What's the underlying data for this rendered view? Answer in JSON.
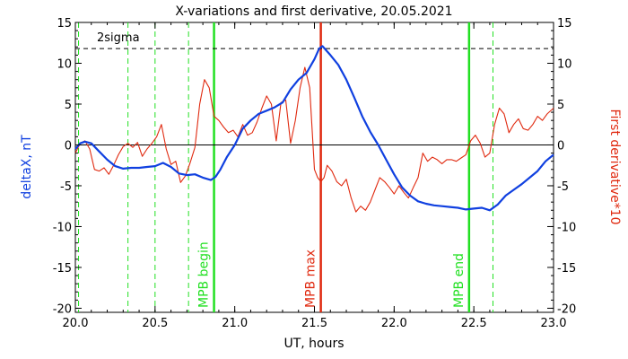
{
  "chart_data": {
    "type": "line",
    "title": "X-variations and first derivative, 20.05.2021",
    "xlabel": "UT, hours",
    "ylabel_left": "deltaX, nT",
    "ylabel_right": "First derivative*10",
    "xlim": [
      20.0,
      23.0
    ],
    "ylim": [
      -20.5,
      15
    ],
    "x_ticks": [
      20.0,
      20.5,
      21.0,
      21.5,
      22.0,
      22.5,
      23.0
    ],
    "x_tick_labels": [
      "20.0",
      "20.5",
      "21.0",
      "21.5",
      "22.0",
      "22.5",
      "23.0"
    ],
    "y_ticks": [
      -20,
      -15,
      -10,
      -5,
      0,
      5,
      10,
      15
    ],
    "y_tick_labels": [
      "-20",
      "-15",
      "-10",
      "-5",
      "0",
      "5",
      "10",
      "15"
    ],
    "zero_line": 0,
    "sigma_line": {
      "label": "2sigma",
      "value": 11.8
    },
    "colors": {
      "deltaX": "#1040e0",
      "derivative": "#e02a10",
      "mpb_line": "#22e022",
      "mpb_max_line": "#e02a10",
      "dashed_marker": "#22e022",
      "right_axis_label": "#e02a10",
      "left_axis_label": "#1040e0"
    },
    "vertical_markers": [
      {
        "x": 20.87,
        "label": "MPB begin",
        "style": "solid",
        "color": "#22e022"
      },
      {
        "x": 21.54,
        "label": "MPB max",
        "style": "solid",
        "color": "#e02a10"
      },
      {
        "x": 22.47,
        "label": "MPB end",
        "style": "solid",
        "color": "#22e022"
      }
    ],
    "dashed_markers": [
      20.02,
      20.33,
      20.5,
      20.71,
      22.62
    ],
    "series": [
      {
        "name": "deltaX",
        "axis": "left",
        "x": [
          20.0,
          20.03,
          20.06,
          20.1,
          20.15,
          20.2,
          20.25,
          20.3,
          20.35,
          20.4,
          20.45,
          20.5,
          20.55,
          20.6,
          20.65,
          20.7,
          20.75,
          20.8,
          20.85,
          20.88,
          20.91,
          20.95,
          21.0,
          21.05,
          21.1,
          21.15,
          21.2,
          21.25,
          21.3,
          21.35,
          21.4,
          21.45,
          21.5,
          21.53,
          21.55,
          21.6,
          21.65,
          21.7,
          21.75,
          21.8,
          21.85,
          21.9,
          21.95,
          22.0,
          22.05,
          22.1,
          22.15,
          22.2,
          22.25,
          22.3,
          22.35,
          22.4,
          22.45,
          22.5,
          22.55,
          22.6,
          22.65,
          22.7,
          22.75,
          22.8,
          22.85,
          22.9,
          22.95,
          23.0
        ],
        "y": [
          -0.5,
          0.2,
          0.4,
          0.2,
          -0.8,
          -1.8,
          -2.6,
          -2.9,
          -2.8,
          -2.8,
          -2.7,
          -2.6,
          -2.2,
          -2.7,
          -3.5,
          -3.7,
          -3.6,
          -4.0,
          -4.3,
          -3.9,
          -3.0,
          -1.5,
          0.0,
          2.0,
          3.0,
          3.8,
          4.2,
          4.6,
          5.2,
          6.8,
          8.0,
          8.8,
          10.5,
          11.8,
          12.1,
          11.0,
          9.8,
          8.0,
          5.8,
          3.5,
          1.6,
          0.0,
          -1.8,
          -3.6,
          -5.2,
          -6.2,
          -6.9,
          -7.2,
          -7.4,
          -7.5,
          -7.6,
          -7.7,
          -7.9,
          -7.8,
          -7.7,
          -8.0,
          -7.3,
          -6.2,
          -5.5,
          -4.8,
          -4.0,
          -3.2,
          -2.0,
          -1.2
        ]
      },
      {
        "name": "First derivative*10",
        "axis": "right",
        "x": [
          20.0,
          20.03,
          20.06,
          20.09,
          20.12,
          20.15,
          20.18,
          20.21,
          20.24,
          20.27,
          20.3,
          20.33,
          20.36,
          20.39,
          20.42,
          20.45,
          20.48,
          20.51,
          20.54,
          20.57,
          20.6,
          20.63,
          20.66,
          20.69,
          20.72,
          20.75,
          20.78,
          20.81,
          20.84,
          20.87,
          20.9,
          20.93,
          20.96,
          20.99,
          21.02,
          21.05,
          21.08,
          21.11,
          21.14,
          21.17,
          21.2,
          21.23,
          21.26,
          21.29,
          21.32,
          21.35,
          21.38,
          21.41,
          21.44,
          21.47,
          21.5,
          21.52,
          21.54,
          21.56,
          21.58,
          21.61,
          21.64,
          21.67,
          21.7,
          21.73,
          21.76,
          21.79,
          21.82,
          21.85,
          21.88,
          21.91,
          21.94,
          21.97,
          22.0,
          22.03,
          22.06,
          22.09,
          22.12,
          22.15,
          22.18,
          22.21,
          22.24,
          22.27,
          22.3,
          22.33,
          22.36,
          22.39,
          22.42,
          22.45,
          22.48,
          22.51,
          22.54,
          22.57,
          22.6,
          22.63,
          22.66,
          22.69,
          22.72,
          22.75,
          22.78,
          22.81,
          22.84,
          22.87,
          22.9,
          22.93,
          22.96,
          23.0
        ],
        "y": [
          -1.0,
          0.2,
          0.5,
          -0.5,
          -3.0,
          -3.2,
          -2.8,
          -3.6,
          -2.5,
          -1.2,
          -0.2,
          0.2,
          -0.3,
          0.3,
          -1.4,
          -0.5,
          0.2,
          1.0,
          2.5,
          -0.5,
          -2.4,
          -2.0,
          -4.6,
          -3.8,
          -2.2,
          -0.3,
          5.0,
          8.0,
          7.0,
          3.5,
          3.0,
          2.2,
          1.5,
          1.8,
          1.0,
          2.5,
          1.2,
          1.5,
          2.8,
          4.5,
          6.0,
          5.0,
          0.5,
          5.2,
          5.5,
          0.2,
          3.0,
          7.0,
          9.5,
          7.0,
          -3.0,
          -4.0,
          -4.5,
          -4.0,
          -2.5,
          -3.2,
          -4.5,
          -5.0,
          -4.2,
          -6.5,
          -8.2,
          -7.5,
          -8.0,
          -7.0,
          -5.5,
          -4.0,
          -4.5,
          -5.2,
          -6.0,
          -5.0,
          -5.8,
          -6.5,
          -5.2,
          -4.0,
          -1.0,
          -2.0,
          -1.5,
          -1.8,
          -2.3,
          -1.8,
          -1.8,
          -2.0,
          -1.6,
          -1.2,
          0.5,
          1.2,
          0.2,
          -1.5,
          -1.0,
          2.5,
          4.5,
          3.8,
          1.5,
          2.5,
          3.2,
          2.0,
          1.8,
          2.5,
          3.5,
          3.0,
          3.8,
          4.5
        ]
      }
    ]
  }
}
